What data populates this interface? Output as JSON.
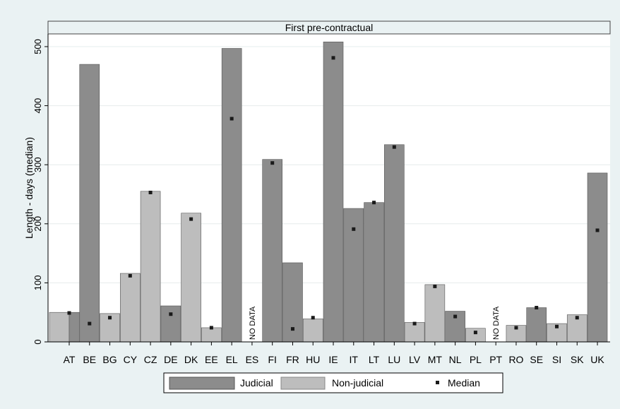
{
  "chart_data": {
    "type": "bar",
    "title": "First pre-contractual",
    "xlabel": "",
    "ylabel": "Length - days (median)",
    "ylim": [
      0,
      520
    ],
    "yticks": [
      0,
      100,
      200,
      300,
      400,
      500
    ],
    "grid": true,
    "legend_position": "bottom",
    "colors": {
      "judicial": "#8c8c8c",
      "non_judicial": "#bdbdbd",
      "median": "#1a1a1a",
      "plot_bg": "#ffffff",
      "outer_bg": "#eaf2f3"
    },
    "legend": [
      {
        "key": "judicial",
        "label": "Judicial"
      },
      {
        "key": "non_judicial",
        "label": "Non-judicial"
      },
      {
        "key": "median",
        "label": "Median"
      }
    ],
    "no_data_label": "NO DATA",
    "categories": [
      "AT",
      "BE",
      "BG",
      "CY",
      "CZ",
      "DE",
      "DK",
      "EE",
      "EL",
      "ES",
      "FI",
      "FR",
      "HU",
      "IE",
      "IT",
      "LT",
      "LU",
      "LV",
      "MT",
      "NL",
      "PL",
      "PT",
      "RO",
      "SE",
      "SI",
      "SK",
      "UK"
    ],
    "bars": [
      {
        "category": "AT",
        "values": [
          {
            "type": "non_judicial",
            "value": 50
          },
          {
            "type": "judicial",
            "value": 50
          }
        ],
        "median": 49
      },
      {
        "category": "BE",
        "values": [
          {
            "type": "judicial",
            "value": 470
          }
        ],
        "median": 31
      },
      {
        "category": "BG",
        "values": [
          {
            "type": "non_judicial",
            "value": 48
          }
        ],
        "median": 41
      },
      {
        "category": "CY",
        "values": [
          {
            "type": "non_judicial",
            "value": 116
          }
        ],
        "median": 112
      },
      {
        "category": "CZ",
        "values": [
          {
            "type": "non_judicial",
            "value": 255
          }
        ],
        "median": 253
      },
      {
        "category": "DE",
        "values": [
          {
            "type": "judicial",
            "value": 61
          }
        ],
        "median": 47
      },
      {
        "category": "DK",
        "values": [
          {
            "type": "non_judicial",
            "value": 218
          }
        ],
        "median": 208
      },
      {
        "category": "EE",
        "values": [
          {
            "type": "non_judicial",
            "value": 24
          }
        ],
        "median": 24
      },
      {
        "category": "EL",
        "values": [
          {
            "type": "judicial",
            "value": 497
          }
        ],
        "median": 378
      },
      {
        "category": "ES",
        "values": [],
        "median": null,
        "no_data": true
      },
      {
        "category": "FI",
        "values": [
          {
            "type": "judicial",
            "value": 309
          }
        ],
        "median": 303
      },
      {
        "category": "FR",
        "values": [
          {
            "type": "judicial",
            "value": 134
          }
        ],
        "median": 22
      },
      {
        "category": "HU",
        "values": [
          {
            "type": "non_judicial",
            "value": 39
          }
        ],
        "median": 41
      },
      {
        "category": "IE",
        "values": [
          {
            "type": "judicial",
            "value": 508
          }
        ],
        "median": 481
      },
      {
        "category": "IT",
        "values": [
          {
            "type": "judicial",
            "value": 226
          }
        ],
        "median": 191
      },
      {
        "category": "LT",
        "values": [
          {
            "type": "judicial",
            "value": 236
          }
        ],
        "median": 236
      },
      {
        "category": "LU",
        "values": [
          {
            "type": "judicial",
            "value": 334
          }
        ],
        "median": 330
      },
      {
        "category": "LV",
        "values": [
          {
            "type": "non_judicial",
            "value": 33
          }
        ],
        "median": 31
      },
      {
        "category": "MT",
        "values": [
          {
            "type": "non_judicial",
            "value": 97
          }
        ],
        "median": 94
      },
      {
        "category": "NL",
        "values": [
          {
            "type": "judicial",
            "value": 52
          }
        ],
        "median": 43
      },
      {
        "category": "PL",
        "values": [
          {
            "type": "non_judicial",
            "value": 23
          }
        ],
        "median": 16
      },
      {
        "category": "PT",
        "values": [],
        "median": null,
        "no_data": true
      },
      {
        "category": "RO",
        "values": [
          {
            "type": "non_judicial",
            "value": 28
          }
        ],
        "median": 24
      },
      {
        "category": "SE",
        "values": [
          {
            "type": "judicial",
            "value": 58
          }
        ],
        "median": 58
      },
      {
        "category": "SI",
        "values": [
          {
            "type": "non_judicial",
            "value": 31
          }
        ],
        "median": 26
      },
      {
        "category": "SK",
        "values": [
          {
            "type": "non_judicial",
            "value": 46
          }
        ],
        "median": 41
      },
      {
        "category": "UK",
        "values": [
          {
            "type": "judicial",
            "value": 286
          }
        ],
        "median": 189
      }
    ]
  }
}
